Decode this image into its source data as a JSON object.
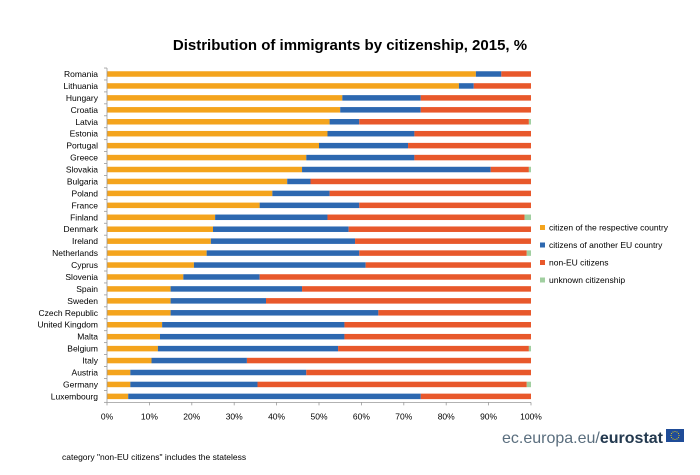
{
  "chart_data": {
    "type": "bar",
    "orientation": "horizontal",
    "stacked": true,
    "title": "Distribution of immigrants by citizenship, 2015, %",
    "categories": [
      "Romania",
      "Lithuania",
      "Hungary",
      "Croatia",
      "Latvia",
      "Estonia",
      "Portugal",
      "Greece",
      "Slovakia",
      "Bulgaria",
      "Poland",
      "France",
      "Finland",
      "Denmark",
      "Ireland",
      "Netherlands",
      "Cyprus",
      "Slovenia",
      "Spain",
      "Sweden",
      "Czech Republic",
      "United Kingdom",
      "Malta",
      "Belgium",
      "Italy",
      "Austria",
      "Germany",
      "Luxembourg"
    ],
    "series": [
      {
        "name": "citizen of the respective country",
        "color": "#f4a41d",
        "values": [
          87.0,
          83.0,
          55.5,
          55.0,
          52.5,
          52.0,
          50.0,
          47.0,
          46.0,
          42.5,
          39.0,
          36.0,
          25.5,
          25.0,
          24.5,
          23.5,
          20.5,
          18.0,
          15.0,
          15.0,
          15.0,
          13.0,
          12.5,
          12.0,
          10.5,
          5.5,
          5.5,
          5.0
        ]
      },
      {
        "name": "citizens of another EU country",
        "color": "#2d68b0",
        "values": [
          6.0,
          3.5,
          18.5,
          19.0,
          7.0,
          20.5,
          21.0,
          25.5,
          44.5,
          5.5,
          13.5,
          23.5,
          26.5,
          32.0,
          34.0,
          36.0,
          40.5,
          18.0,
          31.0,
          22.5,
          49.0,
          43.0,
          43.5,
          42.5,
          22.5,
          41.5,
          30.0,
          69.0
        ]
      },
      {
        "name": "non-EU citizens",
        "color": "#e8582b",
        "values": [
          7.0,
          13.5,
          26.0,
          26.0,
          40.0,
          27.5,
          29.0,
          27.5,
          9.0,
          52.0,
          47.5,
          40.5,
          46.5,
          43.0,
          41.5,
          39.5,
          39.0,
          64.0,
          54.0,
          62.5,
          36.0,
          44.0,
          44.0,
          45.0,
          67.0,
          53.0,
          63.5,
          26.0
        ]
      },
      {
        "name": "unknown citizenship",
        "color": "#a1cfa0",
        "values": [
          0,
          0,
          0,
          0,
          0.5,
          0,
          0,
          0,
          0.5,
          0,
          0,
          0,
          1.5,
          0,
          0,
          1.0,
          0,
          0,
          0,
          0,
          0,
          0,
          0,
          0.5,
          0,
          0,
          1.0,
          0
        ]
      }
    ],
    "xlim": [
      0,
      100
    ],
    "xticks": [
      "0%",
      "10%",
      "20%",
      "30%",
      "40%",
      "50%",
      "60%",
      "70%",
      "80%",
      "90%",
      "100%"
    ],
    "legend_position": "right",
    "grid": false
  },
  "footnote": "category \"non-EU citizens\" includes the stateless",
  "branding": {
    "site": "ec.europa.eu/",
    "name": "eurostat"
  }
}
